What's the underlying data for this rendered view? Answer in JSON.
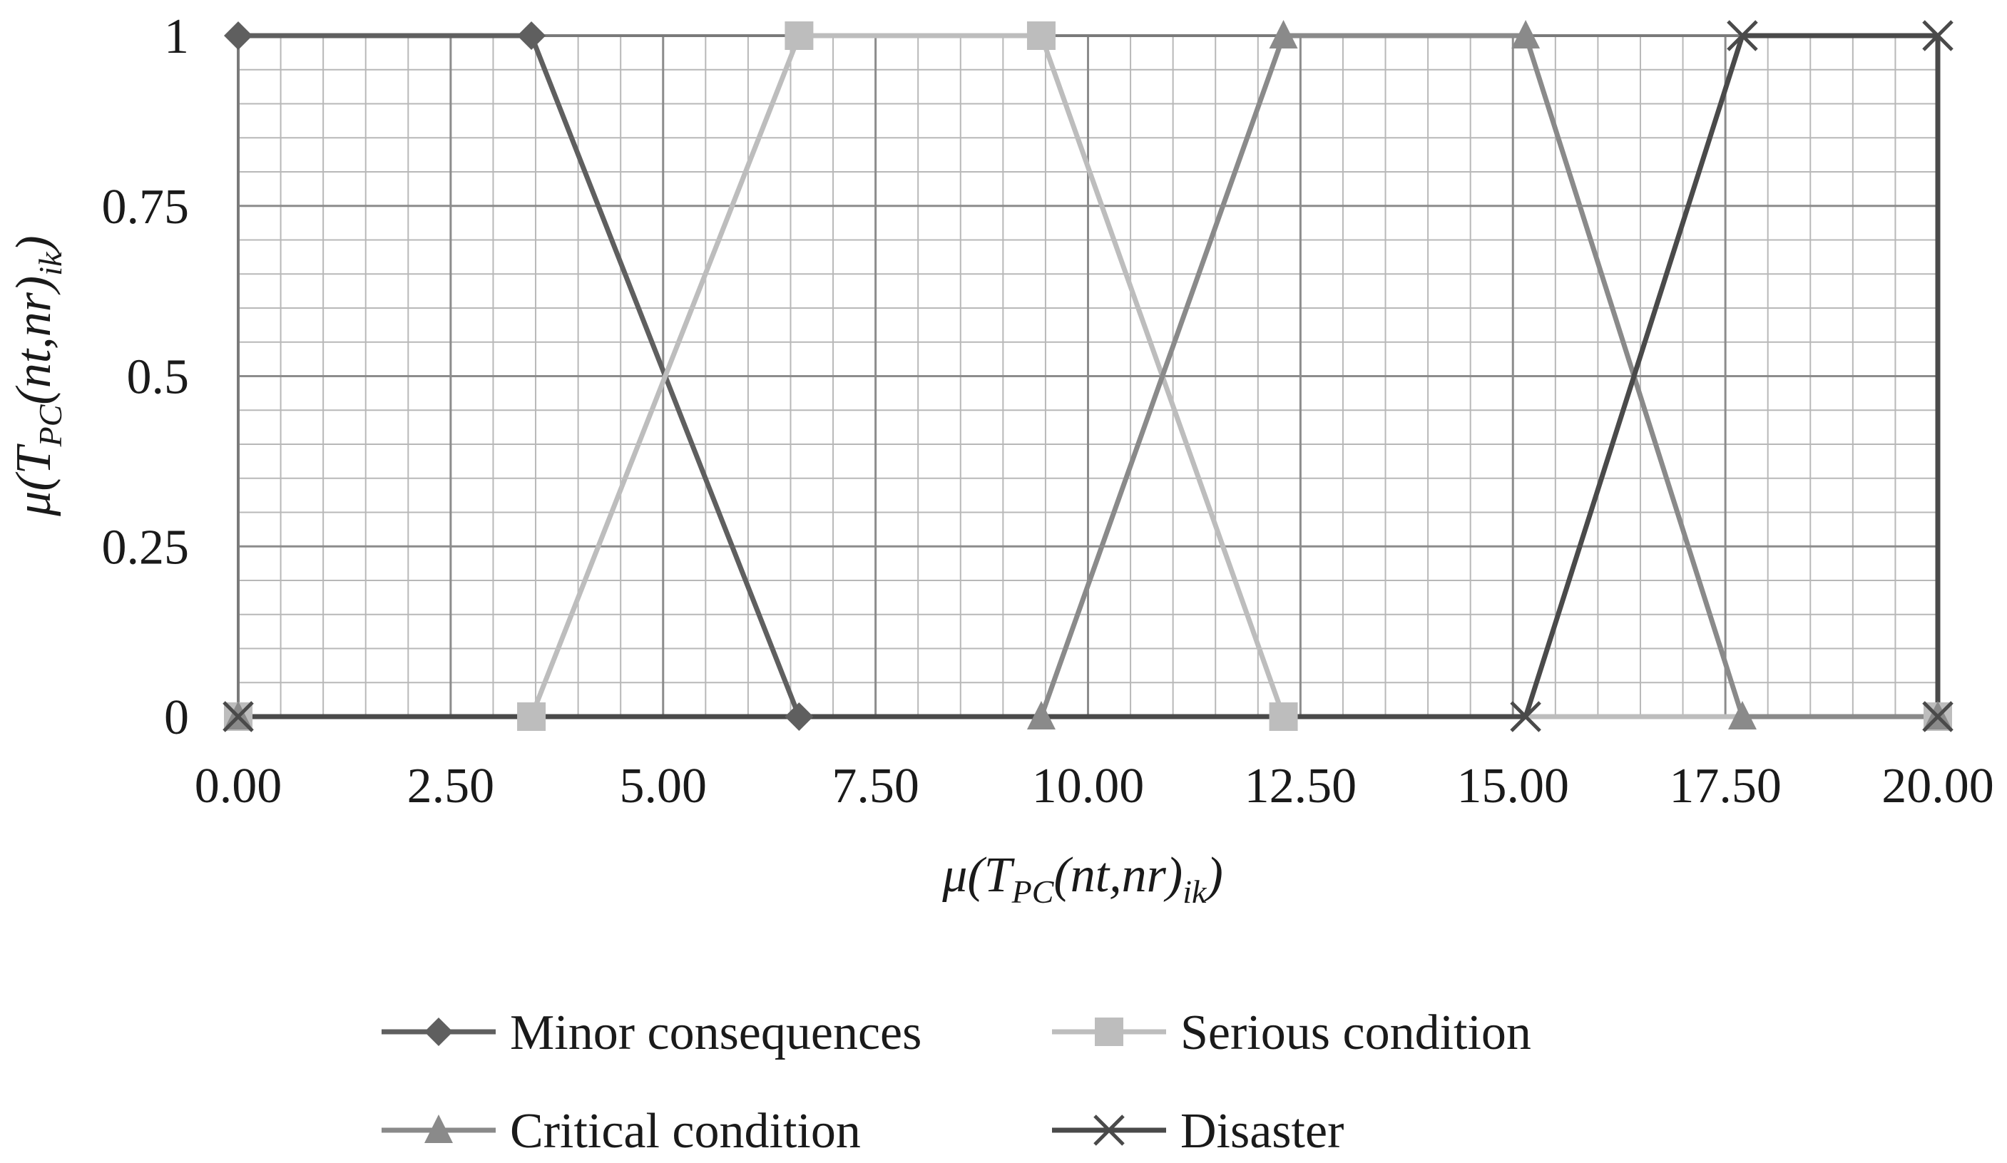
{
  "chart_data": {
    "type": "line",
    "title": "",
    "xlabel": {
      "prefix": "μ(T",
      "sub1": "PC",
      "mid": "(nt,nr)",
      "sub2": "ik",
      "suffix": ")"
    },
    "ylabel": {
      "prefix": "μ(T",
      "sub1": "PC",
      "mid": "(nt,nr)",
      "sub2": "ik",
      "suffix": ")"
    },
    "xlim": [
      0,
      20
    ],
    "ylim": [
      0,
      1
    ],
    "x_ticks": [
      0,
      2.5,
      5,
      7.5,
      10,
      12.5,
      15,
      17.5,
      20
    ],
    "x_tick_labels": [
      "0.00",
      "2.50",
      "5.00",
      "7.50",
      "10.00",
      "12.50",
      "15.00",
      "17.50",
      "20.00"
    ],
    "y_ticks": [
      0,
      0.25,
      0.5,
      0.75,
      1
    ],
    "y_tick_labels": [
      "0",
      "0.25",
      "0.5",
      "0.75",
      "1"
    ],
    "grid": {
      "major": true,
      "minor": true,
      "minor_step_x": 0.5,
      "minor_step_y": 0.05
    },
    "legend_position": "bottom",
    "series": [
      {
        "name": "Minor consequences",
        "marker": "diamond",
        "color": "#5f5f5f",
        "points": [
          [
            0,
            1
          ],
          [
            3.45,
            1
          ],
          [
            6.6,
            0
          ],
          [
            0,
            0
          ],
          [
            20,
            0
          ]
        ]
      },
      {
        "name": "Serious condition",
        "marker": "square",
        "color": "#bdbdbd",
        "points": [
          [
            0,
            0
          ],
          [
            3.45,
            0
          ],
          [
            6.6,
            1
          ],
          [
            9.45,
            1
          ],
          [
            12.3,
            0
          ],
          [
            20,
            0
          ]
        ]
      },
      {
        "name": "Critical condition",
        "marker": "triangle",
        "color": "#8a8a8a",
        "points": [
          [
            0,
            0
          ],
          [
            9.45,
            0
          ],
          [
            12.3,
            1
          ],
          [
            15.15,
            1
          ],
          [
            17.7,
            0
          ],
          [
            20,
            0
          ]
        ]
      },
      {
        "name": "Disaster",
        "marker": "x",
        "color": "#4a4a4a",
        "points": [
          [
            0,
            0
          ],
          [
            15.15,
            0
          ],
          [
            17.7,
            1
          ],
          [
            20,
            1
          ],
          [
            20,
            0
          ]
        ]
      }
    ]
  }
}
